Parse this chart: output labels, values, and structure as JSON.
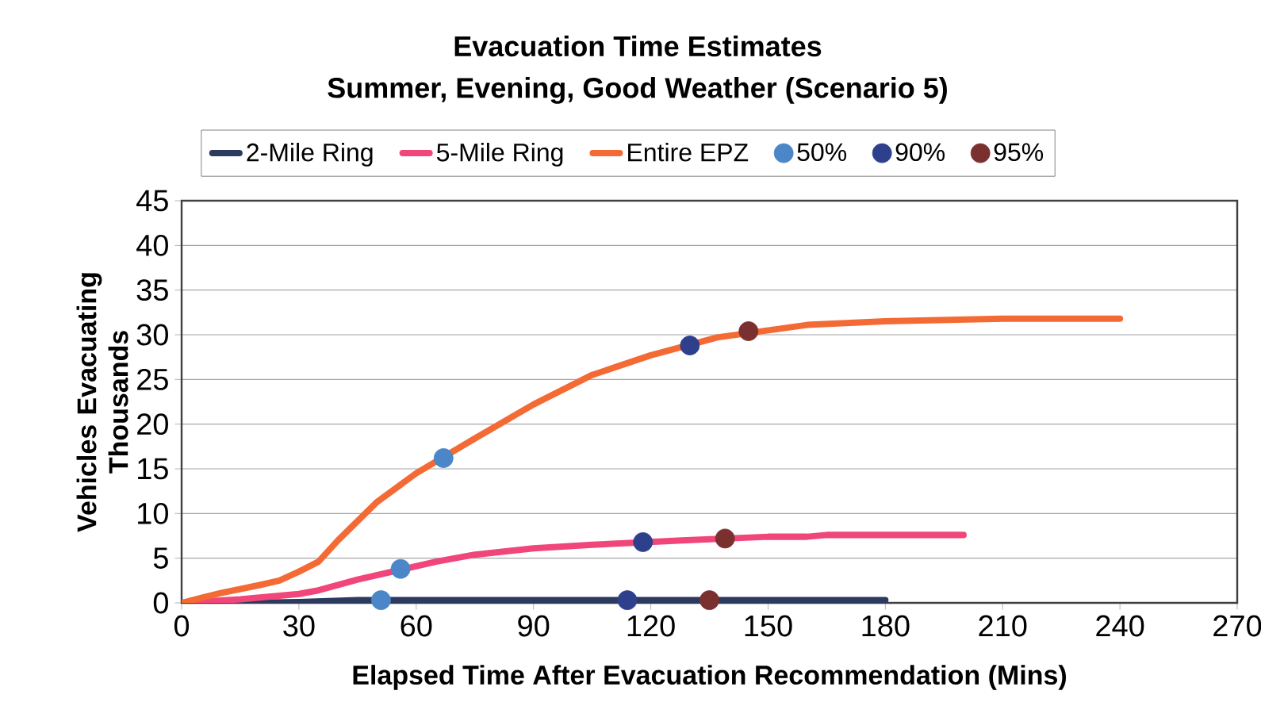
{
  "chart_data": {
    "type": "line",
    "title": "Evacuation Time Estimates",
    "subtitle": "Summer, Evening, Good Weather (Scenario 5)",
    "xlabel": "Elapsed Time After Evacuation Recommendation (Mins)",
    "ylabel": "Vehicles Evacuating Thousands",
    "xlim": [
      0,
      270
    ],
    "xticks": [
      0,
      30,
      60,
      90,
      120,
      150,
      180,
      210,
      240,
      270
    ],
    "ylim": [
      0,
      45
    ],
    "yticks": [
      0,
      5,
      10,
      15,
      20,
      25,
      30,
      35,
      40,
      45
    ],
    "grid": "y",
    "legend": "top",
    "series": [
      {
        "name": "2-Mile Ring",
        "color": "#2b3a5e",
        "x": [
          0,
          15,
          30,
          45,
          100,
          180
        ],
        "values": [
          0,
          0,
          0.1,
          0.3,
          0.3,
          0.3
        ]
      },
      {
        "name": "5-Mile Ring",
        "color": "#f0467a",
        "x": [
          0,
          15,
          30,
          35,
          45,
          65,
          75,
          90,
          105,
          128,
          150,
          160,
          165,
          200
        ],
        "values": [
          0,
          0.4,
          1.0,
          1.4,
          2.6,
          4.6,
          5.4,
          6.1,
          6.5,
          7.0,
          7.4,
          7.4,
          7.6,
          7.6
        ]
      },
      {
        "name": "Entire EPZ",
        "color": "#f46a35",
        "x": [
          0,
          10,
          20,
          25,
          30,
          35,
          40,
          50,
          60,
          75,
          90,
          105,
          120,
          137,
          160,
          180,
          210,
          240
        ],
        "values": [
          0,
          1.1,
          2.0,
          2.5,
          3.5,
          4.6,
          7.0,
          11.3,
          14.5,
          18.4,
          22.2,
          25.5,
          27.7,
          29.7,
          31.1,
          31.5,
          31.8,
          31.8
        ]
      },
      {
        "name": "50%",
        "type": "scatter",
        "color": "#4a86c8",
        "x": [
          51,
          56,
          67
        ],
        "values": [
          0.3,
          3.8,
          16.2
        ]
      },
      {
        "name": "90%",
        "type": "scatter",
        "color": "#2e3f8c",
        "x": [
          114,
          118,
          130
        ],
        "values": [
          0.3,
          6.8,
          28.8
        ]
      },
      {
        "name": "95%",
        "type": "scatter",
        "color": "#7b3030",
        "x": [
          135,
          139,
          145
        ],
        "values": [
          0.3,
          7.2,
          30.4
        ]
      }
    ]
  }
}
